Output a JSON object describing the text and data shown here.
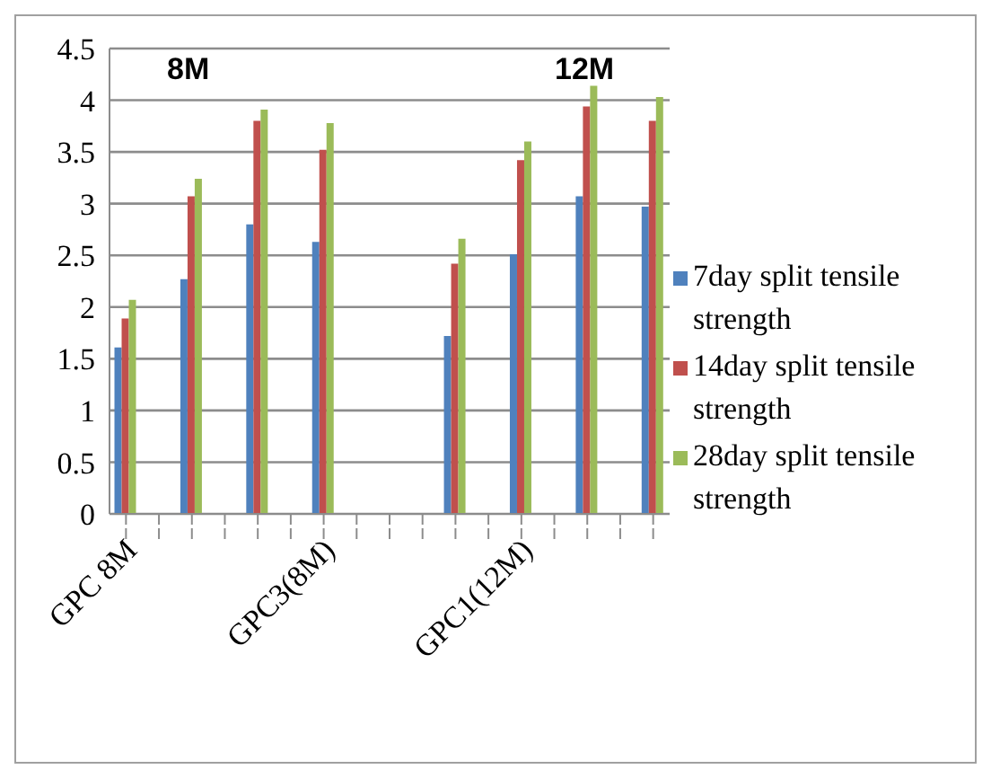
{
  "chart_data": {
    "type": "bar",
    "categories": [
      "GPC 8M",
      null,
      null,
      null,
      null,
      null,
      "GPC3(8M)",
      null,
      null,
      null,
      null,
      null,
      "GPC1(12M)",
      null,
      null,
      null,
      null
    ],
    "series": [
      {
        "name": "7day split tensile strength",
        "color": "#4f81bd",
        "values": [
          1.61,
          null,
          2.27,
          null,
          2.8,
          null,
          2.63,
          null,
          null,
          null,
          1.72,
          null,
          2.51,
          null,
          3.07,
          null,
          2.97
        ]
      },
      {
        "name": "14day split tensile strength",
        "color": "#c0504d",
        "values": [
          1.89,
          null,
          3.07,
          null,
          3.8,
          null,
          3.52,
          null,
          null,
          null,
          2.42,
          null,
          3.42,
          null,
          3.94,
          null,
          3.8
        ]
      },
      {
        "name": "28day split tensile strength",
        "color": "#9bbb59",
        "values": [
          2.07,
          null,
          3.24,
          null,
          3.91,
          null,
          3.78,
          null,
          null,
          null,
          2.66,
          null,
          3.6,
          null,
          4.14,
          null,
          4.03
        ]
      }
    ],
    "annotations": [
      "8M",
      "12M"
    ],
    "ylim": [
      0,
      4.5
    ],
    "yticks": [
      0,
      0.5,
      1,
      1.5,
      2,
      2.5,
      3,
      3.5,
      4,
      4.5
    ],
    "grid": "y",
    "legend": "right"
  }
}
